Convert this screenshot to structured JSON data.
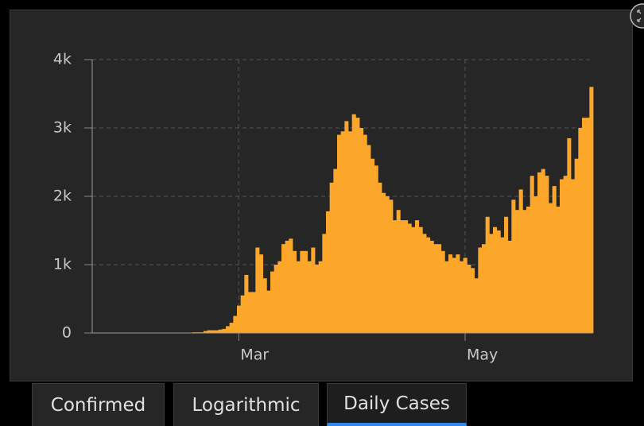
{
  "chart_data": {
    "type": "bar",
    "color": "#fca72a",
    "categories": [
      null,
      null,
      null,
      null,
      null,
      null,
      null,
      null,
      null,
      null,
      null,
      null,
      null,
      null,
      null,
      null,
      null,
      null,
      null,
      null,
      null,
      null,
      null,
      null,
      null,
      null,
      null,
      null,
      null,
      null,
      null,
      null,
      null,
      null,
      null,
      null,
      null,
      null,
      null,
      "Mar",
      null,
      null,
      null,
      null,
      null,
      null,
      null,
      null,
      null,
      null,
      null,
      null,
      null,
      null,
      null,
      null,
      null,
      null,
      null,
      null,
      null,
      null,
      null,
      null,
      null,
      null,
      null,
      null,
      null,
      null,
      null,
      null,
      null,
      null,
      null,
      null,
      null,
      null,
      null,
      null,
      null,
      null,
      null,
      null,
      null,
      null,
      null,
      null,
      null,
      null,
      null,
      null,
      null,
      null,
      null,
      null,
      null,
      null,
      null,
      null,
      "May",
      null,
      null,
      null,
      null,
      null,
      null,
      null,
      null,
      null,
      null,
      null,
      null,
      null,
      null,
      null,
      null,
      null,
      null,
      null,
      null,
      null,
      null,
      null,
      null,
      null,
      null,
      null,
      null,
      null,
      null,
      null,
      null,
      null,
      null
    ],
    "values": [
      0,
      0,
      0,
      0,
      0,
      0,
      0,
      0,
      0,
      0,
      0,
      0,
      0,
      0,
      0,
      5,
      5,
      5,
      5,
      5,
      5,
      5,
      5,
      5,
      5,
      5,
      5,
      10,
      10,
      10,
      30,
      40,
      40,
      40,
      50,
      60,
      100,
      150,
      250,
      400,
      550,
      850,
      600,
      600,
      1250,
      1150,
      800,
      620,
      900,
      1000,
      1050,
      1300,
      1350,
      1380,
      1200,
      1050,
      1200,
      1200,
      1050,
      1250,
      1000,
      1050,
      1450,
      1780,
      2200,
      2400,
      2900,
      2950,
      3100,
      2950,
      3200,
      3150,
      3000,
      2900,
      2750,
      2550,
      2450,
      2200,
      2050,
      2000,
      1950,
      1650,
      1800,
      1650,
      1650,
      1600,
      1550,
      1650,
      1550,
      1450,
      1400,
      1350,
      1300,
      1300,
      1200,
      1050,
      1150,
      1100,
      1150,
      1050,
      1100,
      1000,
      950,
      800,
      1250,
      1300,
      1700,
      1450,
      1550,
      1500,
      1400,
      1700,
      1350,
      1950,
      1800,
      2100,
      1800,
      1850,
      2300,
      2000,
      2350,
      2400,
      2300,
      1900,
      2150,
      1850,
      2250,
      2300,
      2850,
      2250,
      2550,
      3000,
      3150,
      3150,
      3600
    ],
    "ylim": [
      0,
      4000
    ],
    "yticks": [
      0,
      {
        "value": 1000,
        "label": "1k"
      },
      {
        "value": 2000,
        "label": "2k"
      },
      {
        "value": 3000,
        "label": "3k"
      },
      {
        "value": 4000,
        "label": "4k"
      }
    ],
    "grid": true
  },
  "tabs": [
    "Confirmed",
    "Logarithmic",
    "Daily Cases"
  ],
  "active_tab": 2
}
